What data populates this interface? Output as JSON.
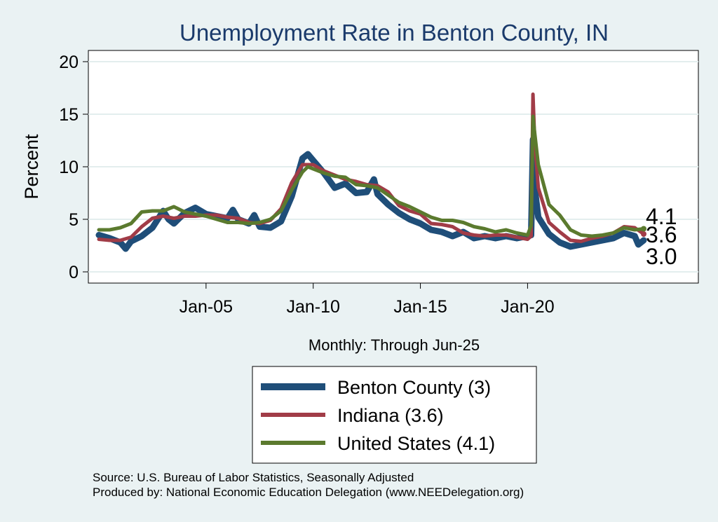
{
  "chart_data": {
    "type": "line",
    "title": "Unemployment Rate in Benton  County, IN",
    "xlabel": "Monthly: Through Jun-25",
    "ylabel": "Percent",
    "x_range": [
      "2000-01",
      "2025-06"
    ],
    "ylim": [
      0,
      20
    ],
    "y_ticks": [
      0,
      5,
      10,
      15,
      20
    ],
    "x_ticks": [
      "2005-01",
      "2010-01",
      "2015-01",
      "2020-01"
    ],
    "x_tick_labels": [
      "Jan-05",
      "Jan-10",
      "Jan-15",
      "Jan-20"
    ],
    "grid": "horizontal",
    "legend_position": "bottom-center",
    "colors": {
      "benton": "#1f4e79",
      "indiana": "#a13c47",
      "us": "#5b7a2e",
      "title": "#1a3a6b",
      "background": "#eaf2f3"
    },
    "series": [
      {
        "name": "Benton  County (3)",
        "key": "benton",
        "end_label": "3.0",
        "points": [
          [
            "2000-01",
            3.5
          ],
          [
            "2000-07",
            3.2
          ],
          [
            "2001-01",
            2.8
          ],
          [
            "2001-04",
            2.2
          ],
          [
            "2001-07",
            2.9
          ],
          [
            "2002-01",
            3.4
          ],
          [
            "2002-07",
            4.2
          ],
          [
            "2003-01",
            5.8
          ],
          [
            "2003-04",
            5.0
          ],
          [
            "2003-07",
            4.6
          ],
          [
            "2004-01",
            5.6
          ],
          [
            "2004-07",
            6.1
          ],
          [
            "2005-01",
            5.5
          ],
          [
            "2005-07",
            5.3
          ],
          [
            "2006-01",
            5.1
          ],
          [
            "2006-04",
            5.9
          ],
          [
            "2006-07",
            5.0
          ],
          [
            "2007-01",
            4.6
          ],
          [
            "2007-04",
            5.4
          ],
          [
            "2007-07",
            4.3
          ],
          [
            "2008-01",
            4.2
          ],
          [
            "2008-07",
            4.8
          ],
          [
            "2009-01",
            7.2
          ],
          [
            "2009-07",
            10.8
          ],
          [
            "2009-10",
            11.2
          ],
          [
            "2010-01",
            10.6
          ],
          [
            "2010-07",
            9.4
          ],
          [
            "2011-01",
            8.0
          ],
          [
            "2011-07",
            8.4
          ],
          [
            "2012-01",
            7.5
          ],
          [
            "2012-07",
            7.6
          ],
          [
            "2012-11",
            8.8
          ],
          [
            "2013-01",
            7.4
          ],
          [
            "2013-07",
            6.4
          ],
          [
            "2014-01",
            5.6
          ],
          [
            "2014-07",
            5.0
          ],
          [
            "2015-01",
            4.6
          ],
          [
            "2015-07",
            4.0
          ],
          [
            "2016-01",
            3.8
          ],
          [
            "2016-07",
            3.4
          ],
          [
            "2017-01",
            3.8
          ],
          [
            "2017-07",
            3.2
          ],
          [
            "2018-01",
            3.4
          ],
          [
            "2018-07",
            3.2
          ],
          [
            "2019-01",
            3.4
          ],
          [
            "2019-07",
            3.2
          ],
          [
            "2020-01",
            3.4
          ],
          [
            "2020-03",
            3.5
          ],
          [
            "2020-04",
            12.6
          ],
          [
            "2020-05",
            8.0
          ],
          [
            "2020-07",
            5.2
          ],
          [
            "2021-01",
            3.6
          ],
          [
            "2021-07",
            2.8
          ],
          [
            "2022-01",
            2.4
          ],
          [
            "2022-07",
            2.6
          ],
          [
            "2023-01",
            2.8
          ],
          [
            "2023-07",
            3.0
          ],
          [
            "2024-01",
            3.2
          ],
          [
            "2024-07",
            3.7
          ],
          [
            "2025-01",
            3.4
          ],
          [
            "2025-03",
            2.6
          ],
          [
            "2025-06",
            3.0
          ]
        ]
      },
      {
        "name": "Indiana (3.6)",
        "key": "indiana",
        "end_label": "3.6",
        "points": [
          [
            "2000-01",
            3.1
          ],
          [
            "2000-07",
            3.0
          ],
          [
            "2001-01",
            3.0
          ],
          [
            "2001-07",
            3.3
          ],
          [
            "2002-01",
            4.3
          ],
          [
            "2002-07",
            5.1
          ],
          [
            "2003-01",
            5.3
          ],
          [
            "2003-07",
            5.1
          ],
          [
            "2004-01",
            5.3
          ],
          [
            "2004-07",
            5.3
          ],
          [
            "2005-01",
            5.4
          ],
          [
            "2005-07",
            5.4
          ],
          [
            "2006-01",
            5.2
          ],
          [
            "2006-07",
            5.1
          ],
          [
            "2007-01",
            4.7
          ],
          [
            "2007-07",
            4.6
          ],
          [
            "2008-01",
            4.9
          ],
          [
            "2008-07",
            6.0
          ],
          [
            "2009-01",
            8.5
          ],
          [
            "2009-07",
            10.2
          ],
          [
            "2010-01",
            10.2
          ],
          [
            "2010-07",
            9.6
          ],
          [
            "2011-01",
            9.2
          ],
          [
            "2011-07",
            8.8
          ],
          [
            "2012-01",
            8.6
          ],
          [
            "2012-07",
            8.3
          ],
          [
            "2013-01",
            8.2
          ],
          [
            "2013-07",
            7.6
          ],
          [
            "2014-01",
            6.3
          ],
          [
            "2014-07",
            5.8
          ],
          [
            "2015-01",
            5.5
          ],
          [
            "2015-07",
            4.6
          ],
          [
            "2016-01",
            4.5
          ],
          [
            "2016-07",
            4.3
          ],
          [
            "2017-01",
            3.7
          ],
          [
            "2017-07",
            3.5
          ],
          [
            "2018-01",
            3.4
          ],
          [
            "2018-07",
            3.5
          ],
          [
            "2019-01",
            3.5
          ],
          [
            "2019-07",
            3.3
          ],
          [
            "2020-01",
            3.1
          ],
          [
            "2020-03",
            3.4
          ],
          [
            "2020-04",
            16.9
          ],
          [
            "2020-05",
            12.4
          ],
          [
            "2020-07",
            8.0
          ],
          [
            "2021-01",
            4.7
          ],
          [
            "2021-07",
            3.8
          ],
          [
            "2022-01",
            3.0
          ],
          [
            "2022-07",
            2.9
          ],
          [
            "2023-01",
            3.2
          ],
          [
            "2023-07",
            3.4
          ],
          [
            "2024-01",
            3.7
          ],
          [
            "2024-07",
            4.3
          ],
          [
            "2025-01",
            4.2
          ],
          [
            "2025-06",
            3.6
          ]
        ]
      },
      {
        "name": "United States (4.1)",
        "key": "us",
        "end_label": "4.1",
        "points": [
          [
            "2000-01",
            4.0
          ],
          [
            "2000-07",
            4.0
          ],
          [
            "2001-01",
            4.2
          ],
          [
            "2001-07",
            4.6
          ],
          [
            "2002-01",
            5.7
          ],
          [
            "2002-07",
            5.8
          ],
          [
            "2003-01",
            5.8
          ],
          [
            "2003-07",
            6.2
          ],
          [
            "2004-01",
            5.7
          ],
          [
            "2004-07",
            5.5
          ],
          [
            "2005-01",
            5.3
          ],
          [
            "2005-07",
            5.0
          ],
          [
            "2006-01",
            4.7
          ],
          [
            "2006-07",
            4.7
          ],
          [
            "2007-01",
            4.6
          ],
          [
            "2007-07",
            4.7
          ],
          [
            "2008-01",
            5.0
          ],
          [
            "2008-07",
            5.8
          ],
          [
            "2009-01",
            7.8
          ],
          [
            "2009-07",
            9.5
          ],
          [
            "2009-10",
            10.0
          ],
          [
            "2010-01",
            9.8
          ],
          [
            "2010-07",
            9.4
          ],
          [
            "2011-01",
            9.1
          ],
          [
            "2011-07",
            9.0
          ],
          [
            "2012-01",
            8.3
          ],
          [
            "2012-07",
            8.2
          ],
          [
            "2013-01",
            8.0
          ],
          [
            "2013-07",
            7.3
          ],
          [
            "2014-01",
            6.6
          ],
          [
            "2014-07",
            6.2
          ],
          [
            "2015-01",
            5.7
          ],
          [
            "2015-07",
            5.2
          ],
          [
            "2016-01",
            4.9
          ],
          [
            "2016-07",
            4.9
          ],
          [
            "2017-01",
            4.7
          ],
          [
            "2017-07",
            4.3
          ],
          [
            "2018-01",
            4.1
          ],
          [
            "2018-07",
            3.8
          ],
          [
            "2019-01",
            4.0
          ],
          [
            "2019-07",
            3.7
          ],
          [
            "2020-01",
            3.5
          ],
          [
            "2020-03",
            4.4
          ],
          [
            "2020-04",
            14.8
          ],
          [
            "2020-05",
            13.2
          ],
          [
            "2020-07",
            10.2
          ],
          [
            "2021-01",
            6.4
          ],
          [
            "2021-07",
            5.4
          ],
          [
            "2022-01",
            4.0
          ],
          [
            "2022-07",
            3.5
          ],
          [
            "2023-01",
            3.4
          ],
          [
            "2023-07",
            3.5
          ],
          [
            "2024-01",
            3.7
          ],
          [
            "2024-07",
            4.2
          ],
          [
            "2025-01",
            4.0
          ],
          [
            "2025-06",
            4.1
          ]
        ]
      }
    ]
  },
  "source_lines": [
    "Source: U.S. Bureau of Labor Statistics, Seasonally Adjusted",
    "Produced by: National Economic Education Delegation (www.NEEDelegation.org)"
  ]
}
